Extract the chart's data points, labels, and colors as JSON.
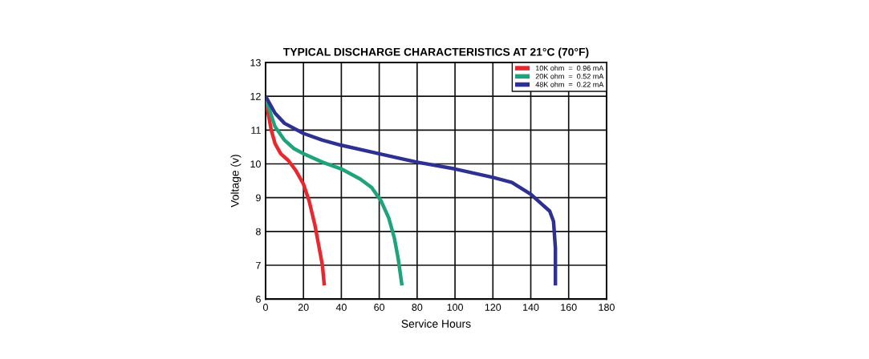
{
  "chart_data": {
    "type": "line",
    "title": "TYPICAL DISCHARGE CHARACTERISTICS AT 21°C (70°F)",
    "xlabel": "Service Hours",
    "ylabel": "Voltage (v)",
    "xlim": [
      0,
      180
    ],
    "xticks": [
      0,
      20,
      40,
      60,
      80,
      100,
      120,
      140,
      160,
      180
    ],
    "ylim": [
      6,
      13
    ],
    "yticks": [
      6,
      7,
      8,
      9,
      10,
      11,
      12,
      13
    ],
    "grid": true,
    "legend": "top right",
    "marker": "none",
    "line_style": "solid",
    "series": [
      {
        "name": "10K ohm  =  0.96 mA",
        "color": "#e8282e",
        "x": [
          0,
          1,
          3,
          5,
          8,
          12,
          16,
          20,
          23,
          26,
          28,
          30,
          31
        ],
        "values": [
          12,
          11.6,
          11,
          10.6,
          10.3,
          10.1,
          9.8,
          9.4,
          8.9,
          8.2,
          7.6,
          7,
          6.4
        ]
      },
      {
        "name": "20K ohm  =  0.52 mA",
        "color": "#1ea37a",
        "x": [
          0,
          2,
          5,
          10,
          15,
          20,
          30,
          40,
          50,
          56,
          61,
          65,
          68,
          70,
          72
        ],
        "values": [
          12,
          11.6,
          11.1,
          10.7,
          10.45,
          10.3,
          10.05,
          9.85,
          9.55,
          9.3,
          8.9,
          8.4,
          7.8,
          7.2,
          6.4
        ]
      },
      {
        "name": "48K ohm  =  0.22 mA",
        "color": "#2e3192",
        "x": [
          0,
          5,
          10,
          20,
          30,
          40,
          60,
          80,
          100,
          120,
          130,
          140,
          146,
          150,
          152,
          153,
          153
        ],
        "values": [
          12,
          11.5,
          11.2,
          10.9,
          10.7,
          10.55,
          10.3,
          10.05,
          9.85,
          9.6,
          9.45,
          9.1,
          8.8,
          8.6,
          8.3,
          7.5,
          6.4
        ]
      }
    ]
  }
}
